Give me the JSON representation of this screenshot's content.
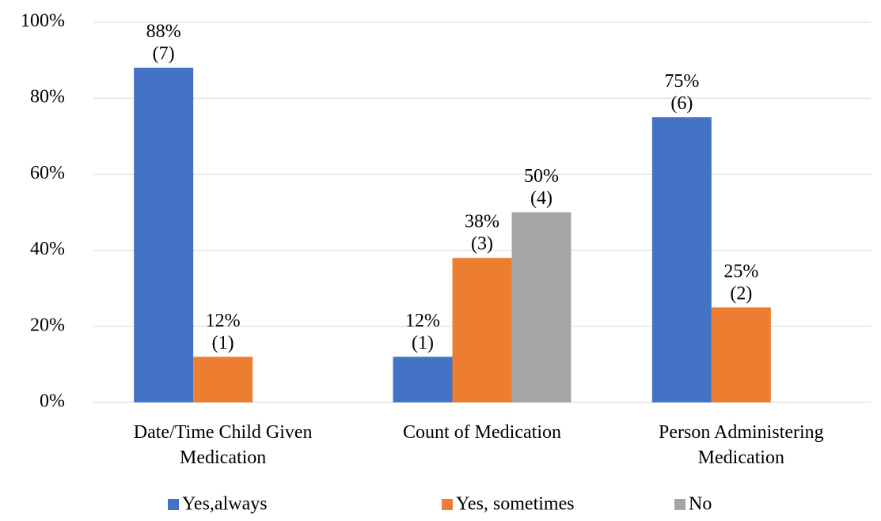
{
  "chart_data": {
    "type": "bar",
    "categories": [
      "Date/Time Child Given Medication",
      "Count of Medication",
      "Person Administering Medication"
    ],
    "series": [
      {
        "name": "Yes,always",
        "color": "#4472c4",
        "values": [
          88,
          12,
          75
        ],
        "value_labels": [
          "88%",
          "12%",
          "75%"
        ],
        "counts": [
          7,
          1,
          6
        ],
        "count_labels": [
          "(7)",
          "(1)",
          "(6)"
        ]
      },
      {
        "name": "Yes, sometimes",
        "color": "#ed7d31",
        "values": [
          12,
          38,
          25
        ],
        "value_labels": [
          "12%",
          "38%",
          "25%"
        ],
        "counts": [
          1,
          3,
          2
        ],
        "count_labels": [
          "(1)",
          "(3)",
          "(2)"
        ]
      },
      {
        "name": "No",
        "color": "#a5a5a5",
        "values": [
          null,
          50,
          null
        ],
        "value_labels": [
          null,
          "50%",
          null
        ],
        "counts": [
          null,
          4,
          null
        ],
        "count_labels": [
          null,
          "(4)",
          null
        ]
      }
    ],
    "ylim": [
      0,
      100
    ],
    "yticks": [
      {
        "value": 0,
        "label": "0%"
      },
      {
        "value": 20,
        "label": "20%"
      },
      {
        "value": 40,
        "label": "40%"
      },
      {
        "value": 60,
        "label": "60%"
      },
      {
        "value": 80,
        "label": "80%"
      },
      {
        "value": 100,
        "label": "100%"
      }
    ],
    "grid": true,
    "legend": "bottom"
  }
}
